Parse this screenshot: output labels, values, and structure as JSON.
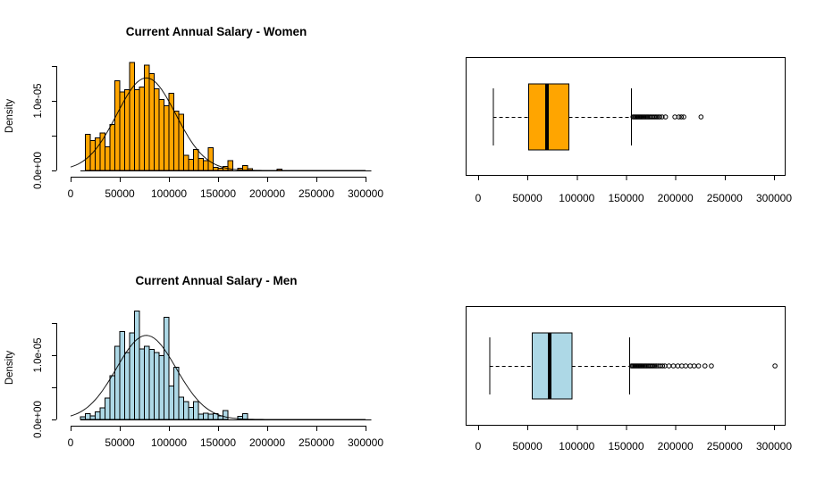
{
  "figure": {
    "background": "#ffffff",
    "foreground": "#000000"
  },
  "chart_data": [
    {
      "id": "women-histogram",
      "type": "bar",
      "title": "Current Annual Salary - Women",
      "xlabel": "",
      "ylabel": "Density",
      "bar_color": "#FFA500",
      "bar_border": "#000000",
      "xlim": [
        0,
        300000
      ],
      "ylim": [
        0,
        1.5e-05
      ],
      "x_ticks": [
        "0",
        "50000",
        "100000",
        "150000",
        "200000",
        "250000",
        "300000"
      ],
      "x_tick_values": [
        0,
        50000,
        100000,
        150000,
        200000,
        250000,
        300000
      ],
      "y_tick_labels": [
        "0.0e+00",
        "1.0e-05"
      ],
      "bin_start": 15000,
      "bin_width": 5000,
      "densities_e6": [
        5.2,
        4.3,
        4.7,
        5.4,
        3.4,
        6.6,
        12.9,
        11.3,
        11.6,
        15.5,
        11.6,
        12.0,
        15.1,
        13.9,
        11.7,
        10.2,
        9.3,
        11.1,
        8.5,
        8.1,
        2.2,
        1.6,
        3.0,
        1.7,
        1.4,
        3.3,
        0.45,
        0.3,
        0.6,
        1.4,
        0,
        0.3,
        0.7,
        0.25,
        0,
        0,
        0,
        0,
        0,
        0.2
      ],
      "curve": {
        "type": "normal",
        "mean": 77000,
        "sd": 30000
      },
      "grid": false,
      "legend": "none"
    },
    {
      "id": "women-boxplot",
      "type": "boxplot",
      "box_color": "#FFA500",
      "orientation": "horizontal",
      "xlim": [
        0,
        300000
      ],
      "x_ticks": [
        "0",
        "50000",
        "100000",
        "150000",
        "200000",
        "250000",
        "300000"
      ],
      "x_tick_values": [
        0,
        50000,
        100000,
        150000,
        200000,
        250000,
        300000
      ],
      "stats": {
        "whisker_low": 15000,
        "q1": 51000,
        "median": 70000,
        "q3": 92000,
        "whisker_high": 155000
      },
      "outliers": [
        157000,
        158200,
        159300,
        160400,
        161500,
        162600,
        163700,
        164800,
        165900,
        167000,
        168200,
        169400,
        170600,
        171800,
        173000,
        174300,
        175600,
        177000,
        178400,
        179800,
        181200,
        182700,
        184200,
        186500,
        190000,
        199500,
        203500,
        206000,
        208500,
        226000
      ]
    },
    {
      "id": "men-histogram",
      "type": "bar",
      "title": "Current Annual Salary - Men",
      "xlabel": "",
      "ylabel": "Density",
      "bar_color": "#ADD8E6",
      "bar_border": "#000000",
      "xlim": [
        0,
        300000
      ],
      "ylim": [
        0,
        1.5e-05
      ],
      "x_ticks": [
        "0",
        "50000",
        "100000",
        "150000",
        "200000",
        "250000",
        "300000"
      ],
      "x_tick_values": [
        0,
        50000,
        100000,
        150000,
        200000,
        250000,
        300000
      ],
      "y_tick_labels": [
        "0.0e+00",
        "1.0e-05"
      ],
      "bin_start": 10000,
      "bin_width": 5000,
      "densities_e6": [
        0.4,
        0.9,
        0.55,
        1.2,
        1.8,
        3.3,
        6.8,
        11.4,
        13.7,
        10.4,
        13.5,
        16.9,
        11.0,
        11.4,
        10.9,
        10.4,
        9.9,
        15.9,
        5.2,
        8.1,
        3.5,
        2.8,
        1.9,
        2.8,
        0.8,
        1.0,
        0.8,
        0.9,
        0.55,
        1.4,
        0,
        0,
        0.5,
        0.9
      ],
      "curve": {
        "type": "normal",
        "mean": 77000,
        "sd": 30500
      },
      "grid": false,
      "legend": "none"
    },
    {
      "id": "men-boxplot",
      "type": "boxplot",
      "box_color": "#ADD8E6",
      "orientation": "horizontal",
      "xlim": [
        0,
        300000
      ],
      "x_ticks": [
        "0",
        "50000",
        "100000",
        "150000",
        "200000",
        "250000",
        "300000"
      ],
      "x_tick_values": [
        0,
        50000,
        100000,
        150000,
        200000,
        250000,
        300000
      ],
      "stats": {
        "whisker_low": 11500,
        "q1": 55000,
        "median": 72500,
        "q3": 95000,
        "whisker_high": 153000
      },
      "outliers": [
        155500,
        156600,
        157700,
        158800,
        159900,
        161000,
        162100,
        163200,
        164300,
        165400,
        166500,
        167700,
        168900,
        170100,
        171300,
        172600,
        173900,
        175200,
        176600,
        178000,
        179500,
        181000,
        182800,
        184800,
        187000,
        189300,
        193500,
        198000,
        202500,
        206500,
        210500,
        215000,
        219000,
        223500,
        230000,
        236500,
        301000
      ]
    }
  ]
}
